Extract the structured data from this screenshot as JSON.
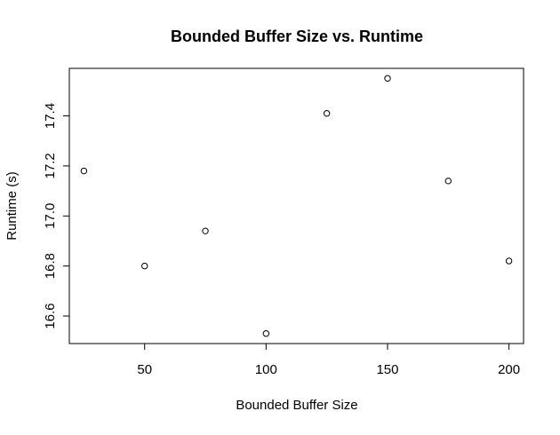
{
  "chart_data": {
    "type": "scatter",
    "title": "Bounded Buffer Size vs. Runtime",
    "xlabel": "Bounded Buffer Size",
    "ylabel": "Runtime (s)",
    "xlim": [
      19,
      206
    ],
    "ylim": [
      16.49,
      17.59
    ],
    "x_ticks": [
      50,
      100,
      150,
      200
    ],
    "y_ticks": [
      16.6,
      16.8,
      17.0,
      17.2,
      17.4
    ],
    "x_tick_labels": [
      "50",
      "100",
      "150",
      "200"
    ],
    "y_tick_labels": [
      "16.6",
      "16.8",
      "17.0",
      "17.2",
      "17.4"
    ],
    "points": [
      {
        "x": 25,
        "y": 17.18
      },
      {
        "x": 50,
        "y": 16.8
      },
      {
        "x": 75,
        "y": 16.94
      },
      {
        "x": 100,
        "y": 16.53
      },
      {
        "x": 125,
        "y": 17.41
      },
      {
        "x": 150,
        "y": 17.55
      },
      {
        "x": 175,
        "y": 17.14
      },
      {
        "x": 200,
        "y": 16.82
      }
    ],
    "grid": false,
    "legend": "none",
    "marker": "open-circle",
    "colors": {
      "axis": "#000000",
      "point_stroke": "#000000",
      "background": "#ffffff"
    }
  }
}
